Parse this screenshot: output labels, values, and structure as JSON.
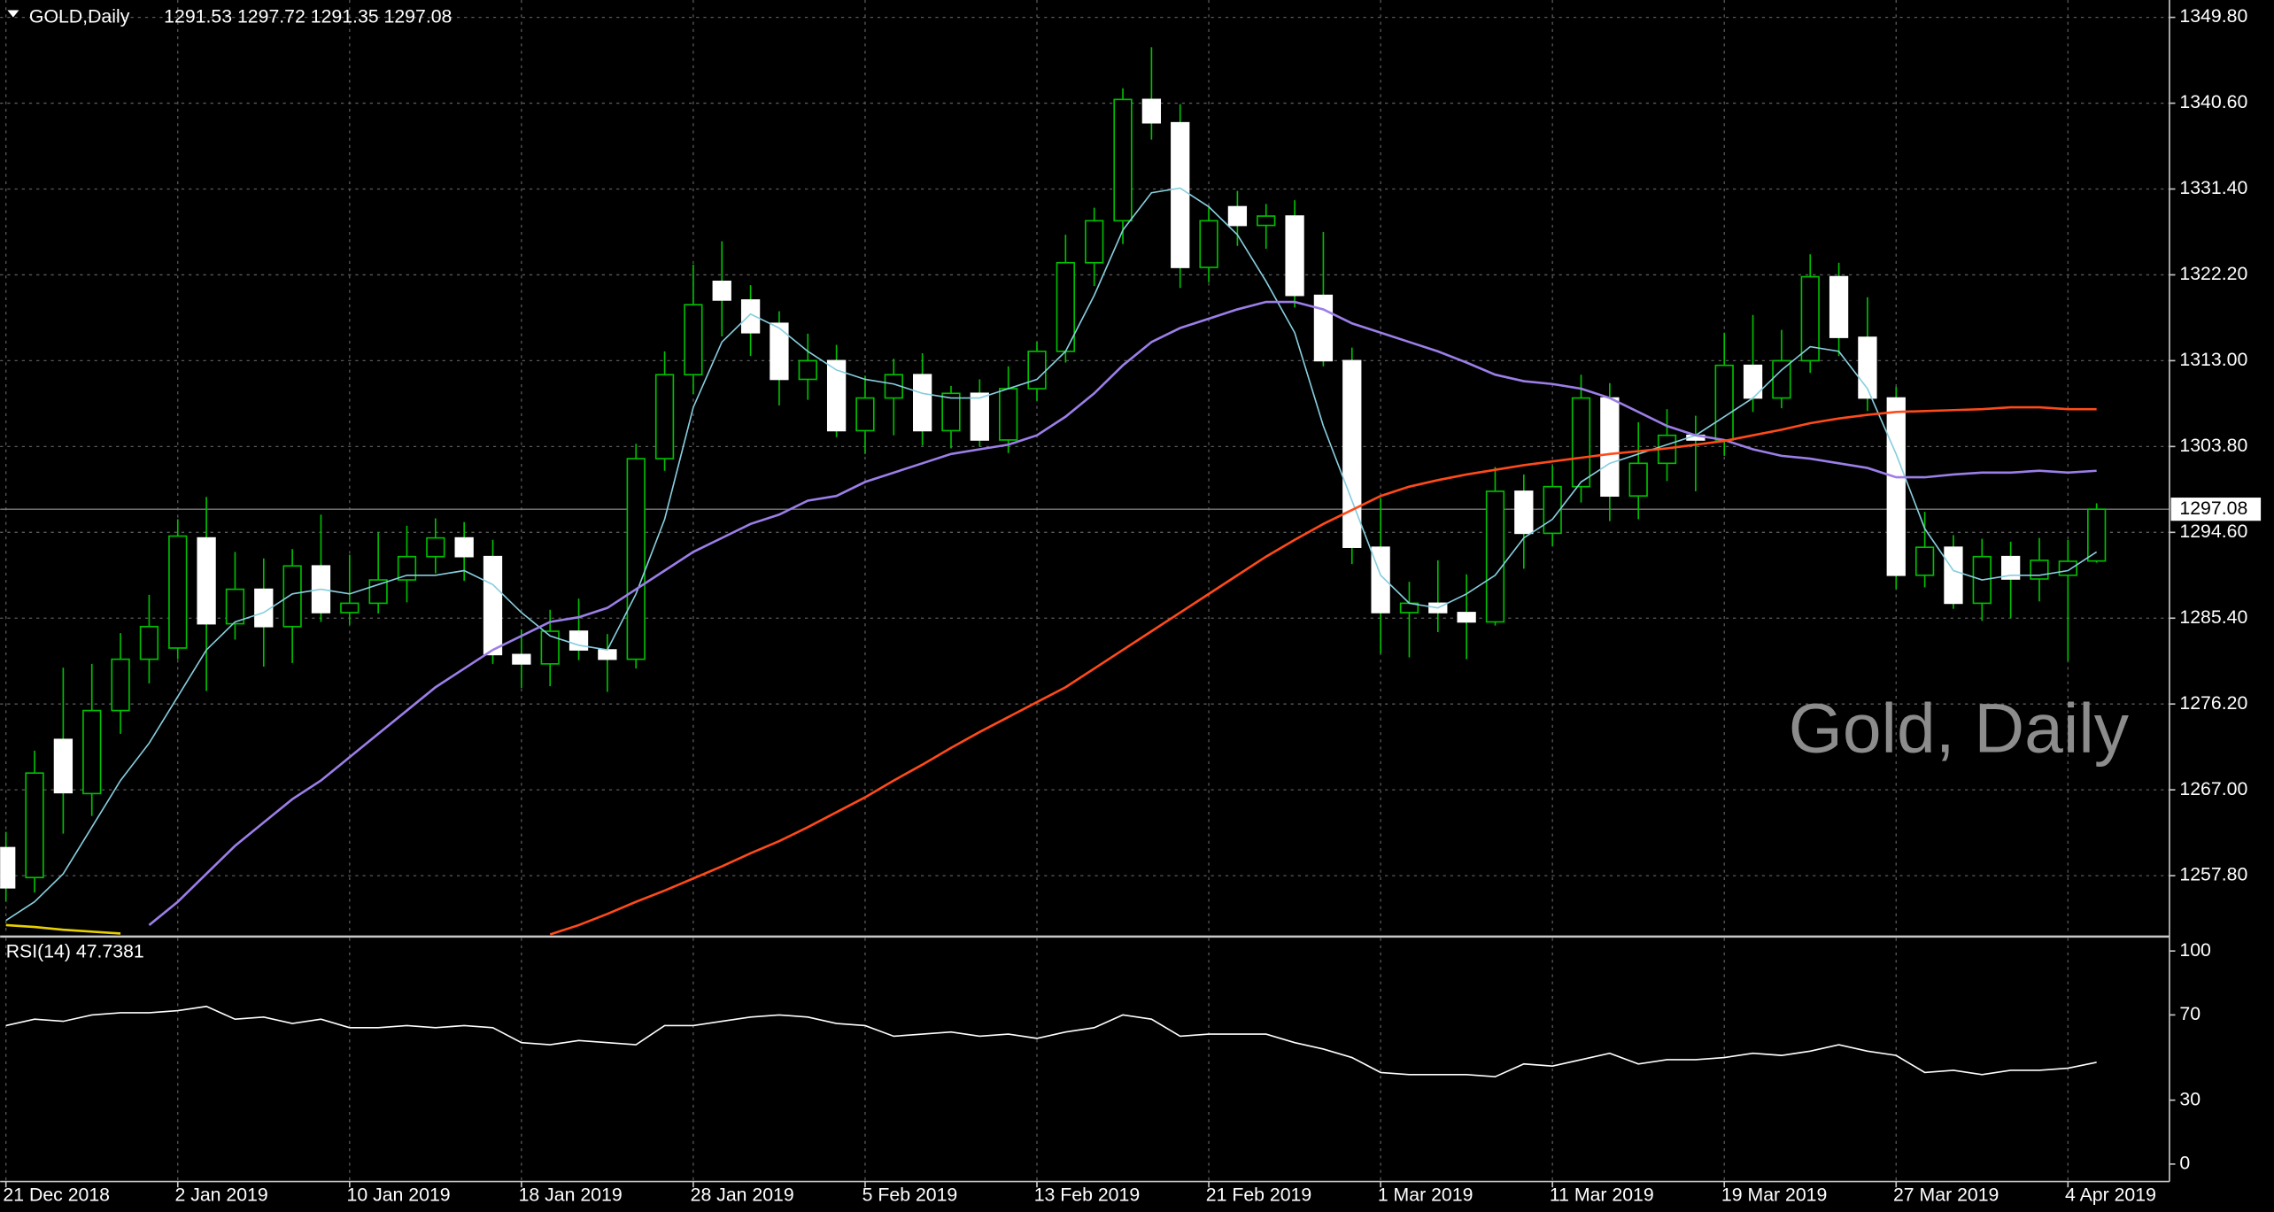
{
  "chart_data": [
    {
      "type": "candlestick",
      "title": "GOLD,Daily",
      "ohlc_text": "1291.53 1297.72 1291.35 1297.08",
      "watermark": "Gold, Daily",
      "categories": [
        "21 Dec 2018",
        null,
        null,
        null,
        null,
        null,
        "2 Jan 2019",
        null,
        null,
        null,
        null,
        null,
        "10 Jan 2019",
        null,
        null,
        null,
        null,
        null,
        "18 Jan 2019",
        null,
        null,
        null,
        null,
        null,
        "28 Jan 2019",
        null,
        null,
        null,
        null,
        null,
        "5 Feb 2019",
        null,
        null,
        null,
        null,
        null,
        "13 Feb 2019",
        null,
        null,
        null,
        null,
        null,
        "21 Feb 2019",
        null,
        null,
        null,
        null,
        null,
        "1 Mar 2019",
        null,
        null,
        null,
        null,
        null,
        "11 Mar 2019",
        null,
        null,
        null,
        null,
        null,
        "19 Mar 2019",
        null,
        null,
        null,
        null,
        null,
        "27 Mar 2019",
        null,
        null,
        null,
        null,
        null,
        "4 Apr 2019",
        null
      ],
      "open": [
        1260.8,
        1257.6,
        1272.4,
        1266.6,
        1275.5,
        1281.0,
        1282.2,
        1294.0,
        1284.8,
        1288.5,
        1284.5,
        1291.0,
        1286.0,
        1287.0,
        1289.5,
        1292.0,
        1294.0,
        1292.0,
        1281.5,
        1280.5,
        1284.0,
        1282.0,
        1281.0,
        1302.5,
        1311.5,
        1321.5,
        1319.5,
        1317.0,
        1311.0,
        1313.0,
        1305.5,
        1309.0,
        1311.5,
        1305.5,
        1309.5,
        1304.5,
        1310.0,
        1314.0,
        1323.5,
        1328.0,
        1341.0,
        1338.5,
        1323.0,
        1329.5,
        1327.5,
        1328.5,
        1320.0,
        1313.0,
        1293.0,
        1286.0,
        1287.0,
        1286.0,
        1285.0,
        1299.0,
        1294.5,
        1299.5,
        1309.0,
        1298.5,
        1302.0,
        1305.0,
        1304.5,
        1312.5,
        1309.0,
        1313.0,
        1322.0,
        1315.5,
        1309.0,
        1290.0,
        1293.0,
        1287.0,
        1292.0,
        1289.6,
        1290.0,
        1291.53
      ],
      "high": [
        1262.5,
        1271.2,
        1280.1,
        1280.5,
        1283.8,
        1287.9,
        1296.0,
        1298.4,
        1292.5,
        1291.8,
        1292.8,
        1296.5,
        1292.2,
        1294.6,
        1295.3,
        1296.1,
        1295.7,
        1293.8,
        1284.2,
        1286.3,
        1287.5,
        1283.7,
        1304.1,
        1314.0,
        1323.3,
        1325.8,
        1321.1,
        1318.3,
        1315.9,
        1314.7,
        1311.4,
        1313.2,
        1313.8,
        1310.3,
        1311.0,
        1312.4,
        1315.0,
        1326.5,
        1329.4,
        1342.2,
        1346.6,
        1340.5,
        1329.6,
        1331.2,
        1329.8,
        1330.2,
        1326.8,
        1314.4,
        1298.3,
        1289.3,
        1291.6,
        1290.1,
        1301.6,
        1300.8,
        1301.8,
        1311.5,
        1310.6,
        1306.4,
        1307.8,
        1307.1,
        1316.0,
        1317.9,
        1316.3,
        1324.4,
        1323.5,
        1319.8,
        1310.2,
        1296.8,
        1294.3,
        1293.9,
        1293.6,
        1294.0,
        1293.8,
        1297.72
      ],
      "low": [
        1255.0,
        1256.0,
        1262.3,
        1264.2,
        1273.0,
        1278.4,
        1281.0,
        1277.6,
        1283.1,
        1280.2,
        1280.6,
        1285.0,
        1284.7,
        1285.9,
        1287.1,
        1290.2,
        1289.4,
        1280.5,
        1277.9,
        1278.1,
        1280.9,
        1277.5,
        1280.0,
        1301.2,
        1309.4,
        1315.6,
        1313.5,
        1308.2,
        1308.8,
        1304.8,
        1303.0,
        1305.0,
        1303.9,
        1303.6,
        1303.8,
        1303.1,
        1308.7,
        1312.8,
        1321.0,
        1325.5,
        1336.7,
        1320.8,
        1321.4,
        1325.3,
        1325.0,
        1318.7,
        1312.4,
        1291.2,
        1281.6,
        1281.2,
        1283.9,
        1281.0,
        1284.6,
        1290.7,
        1293.1,
        1297.8,
        1295.8,
        1296.0,
        1300.1,
        1299.0,
        1302.8,
        1307.5,
        1307.9,
        1311.7,
        1313.5,
        1307.6,
        1288.5,
        1288.7,
        1286.4,
        1285.1,
        1285.4,
        1287.2,
        1280.8,
        1291.35
      ],
      "close": [
        1256.5,
        1268.8,
        1266.7,
        1275.5,
        1281.0,
        1284.5,
        1294.2,
        1284.8,
        1288.5,
        1284.5,
        1291.0,
        1286.0,
        1287.0,
        1289.5,
        1292.0,
        1294.0,
        1292.0,
        1281.5,
        1280.5,
        1284.0,
        1282.0,
        1281.0,
        1302.5,
        1311.5,
        1319.0,
        1319.5,
        1316.0,
        1311.0,
        1313.0,
        1305.5,
        1309.0,
        1311.5,
        1305.5,
        1309.5,
        1304.5,
        1310.0,
        1314.0,
        1323.5,
        1328.0,
        1341.0,
        1338.5,
        1323.0,
        1328.0,
        1327.5,
        1328.5,
        1320.0,
        1313.0,
        1293.0,
        1286.0,
        1287.0,
        1286.0,
        1285.0,
        1299.0,
        1294.5,
        1299.5,
        1309.0,
        1298.5,
        1302.0,
        1305.0,
        1304.5,
        1312.5,
        1309.0,
        1313.0,
        1322.0,
        1315.5,
        1309.0,
        1290.0,
        1293.0,
        1287.0,
        1292.0,
        1289.6,
        1291.6,
        1291.5,
        1297.08
      ],
      "bull_color": "#000000",
      "bear_color": "#ffffff",
      "wick_color": "#00c000",
      "series": [
        {
          "color": "#87cede",
          "values": [
            1253,
            1255,
            1258,
            1263,
            1268,
            1272,
            1277,
            1282,
            1285,
            1286,
            1288,
            1288.5,
            1288,
            1289,
            1290,
            1290,
            1290.5,
            1289,
            1286,
            1283.5,
            1282.5,
            1282,
            1288,
            1296,
            1308,
            1315,
            1318,
            1316.5,
            1314,
            1312,
            1311,
            1310.5,
            1309.5,
            1309,
            1309,
            1310,
            1311,
            1314,
            1320,
            1327,
            1331,
            1331.5,
            1329.5,
            1326.5,
            1321.5,
            1316,
            1306,
            1298,
            1290,
            1287,
            1286.5,
            1288,
            1290,
            1294,
            1296,
            1300,
            1302,
            1303,
            1304,
            1305,
            1307,
            1309,
            1312,
            1314.5,
            1314,
            1310,
            1303,
            1295,
            1290.5,
            1289.5,
            1290,
            1290,
            1290.5,
            1292.5
          ]
        },
        {
          "color": "#9c7ee8",
          "values": [
            null,
            null,
            null,
            null,
            null,
            1252.5,
            1255,
            1258,
            1261,
            1263.5,
            1266,
            1268,
            1270.5,
            1273,
            1275.5,
            1278,
            1280,
            1282,
            1283.5,
            1285,
            1285.5,
            1286.5,
            1288.5,
            1290.5,
            1292.5,
            1294,
            1295.5,
            1296.5,
            1298,
            1298.5,
            1300,
            1301,
            1302,
            1303,
            1303.5,
            1304,
            1305,
            1307,
            1309.5,
            1312.5,
            1315,
            1316.5,
            1317.5,
            1318.5,
            1319.3,
            1319.3,
            1318.5,
            1317,
            1316,
            1315,
            1314,
            1312.8,
            1311.5,
            1310.8,
            1310.5,
            1310,
            1309,
            1307.5,
            1306,
            1305,
            1304.5,
            1303.5,
            1302.8,
            1302.5,
            1302,
            1301.5,
            1300.5,
            1300.5,
            1300.8,
            1301,
            1301,
            1301.2,
            1301,
            1301.2
          ]
        },
        {
          "color": "#ff4a1a",
          "values": [
            null,
            null,
            null,
            null,
            null,
            null,
            null,
            null,
            null,
            null,
            null,
            null,
            null,
            null,
            null,
            null,
            null,
            null,
            null,
            1251.5,
            1252.5,
            1253.7,
            1255,
            1256.2,
            1257.5,
            1258.8,
            1260.2,
            1261.5,
            1263,
            1264.6,
            1266.2,
            1268,
            1269.7,
            1271.5,
            1273.2,
            1274.8,
            1276.4,
            1278,
            1280,
            1282,
            1284,
            1286,
            1288,
            1290,
            1292,
            1293.8,
            1295.5,
            1297,
            1298.5,
            1299.5,
            1300.2,
            1300.8,
            1301.3,
            1301.8,
            1302.2,
            1302.6,
            1303,
            1303.3,
            1303.6,
            1304,
            1304.4,
            1305,
            1305.6,
            1306.3,
            1306.8,
            1307.2,
            1307.5,
            1307.6,
            1307.7,
            1307.8,
            1308,
            1308,
            1307.8,
            1307.8
          ]
        },
        {
          "color": "#e8d000",
          "values": [
            1252.5,
            1252.3,
            1252,
            1251.8,
            1251.6,
            null,
            null,
            null,
            null,
            null,
            null,
            null,
            null,
            null,
            null,
            null,
            null,
            null,
            null,
            null,
            null,
            null,
            null,
            null,
            null,
            null,
            null,
            null,
            null,
            null,
            null,
            null,
            null,
            null,
            null,
            null,
            null,
            null,
            null,
            null,
            null,
            null,
            null,
            null,
            null,
            null,
            null,
            null,
            null,
            null,
            null,
            null,
            null,
            null,
            null,
            null,
            null,
            null,
            null,
            null,
            null,
            null,
            null,
            null,
            null,
            null,
            null,
            null,
            null,
            null,
            null,
            null,
            null,
            null
          ]
        }
      ],
      "current_price": {
        "value": 1297.08,
        "label": "1297.08"
      },
      "ylim": [
        1251.43,
        1351.66
      ],
      "yticks": [
        {
          "value": 1349.8,
          "label": "1349.80"
        },
        {
          "value": 1340.6,
          "label": "1340.60"
        },
        {
          "value": 1331.4,
          "label": "1331.40"
        },
        {
          "value": 1322.2,
          "label": "1322.20"
        },
        {
          "value": 1313.0,
          "label": "1313.00"
        },
        {
          "value": 1303.8,
          "label": "1303.80"
        },
        {
          "value": 1294.6,
          "label": "1294.60"
        },
        {
          "value": 1285.4,
          "label": "1285.40"
        },
        {
          "value": 1276.2,
          "label": "1276.20"
        },
        {
          "value": 1267.0,
          "label": "1267.00"
        },
        {
          "value": 1257.8,
          "label": "1257.80"
        }
      ],
      "grid": true
    },
    {
      "type": "line",
      "title": "RSI(14) 47.7381",
      "color": "#ffffff",
      "values": [
        65,
        68,
        67,
        70,
        71,
        71,
        72,
        74,
        68,
        69,
        66,
        68,
        64,
        64,
        65,
        64,
        65,
        64,
        57,
        56,
        58,
        57,
        56,
        65,
        65,
        67,
        69,
        70,
        69,
        66,
        65,
        60,
        61,
        62,
        60,
        61,
        59,
        62,
        64,
        70,
        68,
        60,
        61,
        61,
        61,
        57,
        54,
        50,
        43,
        42,
        42,
        42,
        41,
        47,
        46,
        49,
        52,
        47,
        49,
        49,
        50,
        52,
        51,
        53,
        56,
        53,
        51,
        43,
        44,
        42,
        44,
        44,
        45,
        47.7381
      ],
      "ylim": [
        -8.2,
        106.1
      ],
      "yticks": [
        0,
        30,
        70,
        100
      ],
      "grid": true
    }
  ]
}
